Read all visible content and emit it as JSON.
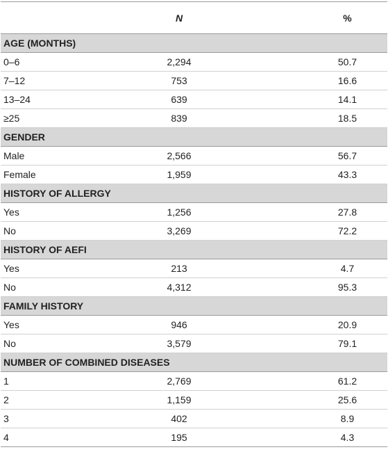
{
  "header": {
    "n": "N",
    "pct": "%"
  },
  "sections": [
    {
      "title": "AGE (MONTHS)",
      "rows": [
        [
          "0–6",
          "2,294",
          "50.7"
        ],
        [
          "7–12",
          "753",
          "16.6"
        ],
        [
          "13–24",
          "639",
          "14.1"
        ],
        [
          "≥25",
          "839",
          "18.5"
        ]
      ]
    },
    {
      "title": "GENDER",
      "rows": [
        [
          "Male",
          "2,566",
          "56.7"
        ],
        [
          "Female",
          "1,959",
          "43.3"
        ]
      ]
    },
    {
      "title": "HISTORY OF ALLERGY",
      "rows": [
        [
          "Yes",
          "1,256",
          "27.8"
        ],
        [
          "No",
          "3,269",
          "72.2"
        ]
      ]
    },
    {
      "title": "HISTORY OF AEFI",
      "rows": [
        [
          "Yes",
          "213",
          "4.7"
        ],
        [
          "No",
          "4,312",
          "95.3"
        ]
      ]
    },
    {
      "title": "FAMILY HISTORY",
      "rows": [
        [
          "Yes",
          "946",
          "20.9"
        ],
        [
          "No",
          "3,579",
          "79.1"
        ]
      ]
    },
    {
      "title": "NUMBER OF COMBINED DISEASES",
      "rows": [
        [
          "1",
          "2,769",
          "61.2"
        ],
        [
          "2",
          "1,159",
          "25.6"
        ],
        [
          "3",
          "402",
          "8.9"
        ],
        [
          "4",
          "195",
          "4.3"
        ]
      ]
    }
  ]
}
